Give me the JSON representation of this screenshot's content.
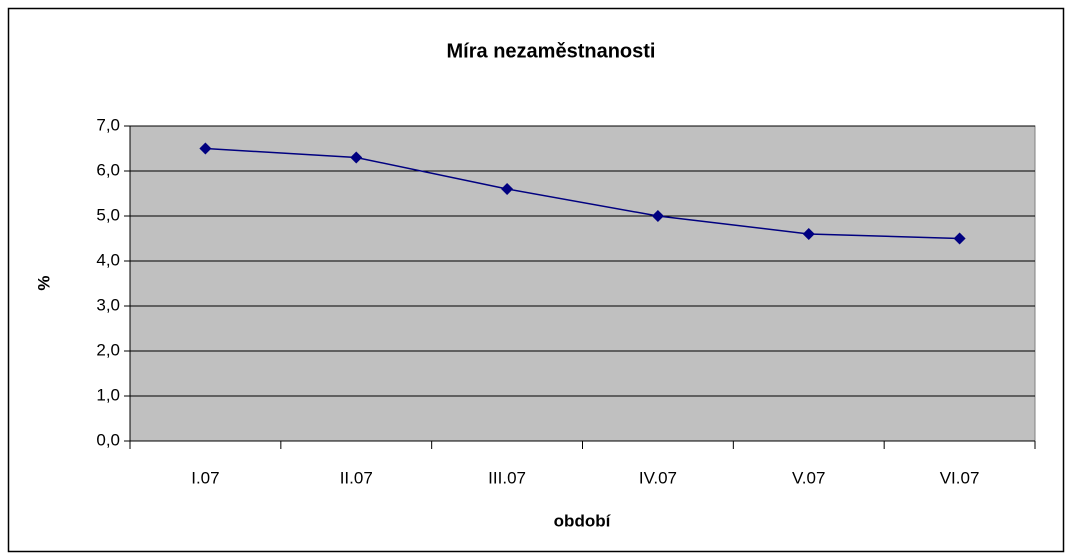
{
  "chart_data": {
    "type": "line",
    "title": "Míra nezaměstnanosti",
    "x_label": "období",
    "y_label": "%",
    "categories": [
      "I.07",
      "II.07",
      "III.07",
      "IV.07",
      "V.07",
      "VI.07"
    ],
    "series": [
      {
        "name": "Míra nezaměstnanosti",
        "color": "#000080",
        "values": [
          6.5,
          6.3,
          5.6,
          5.0,
          4.6,
          4.5
        ]
      }
    ],
    "ylim": [
      0,
      7
    ],
    "yticks": [
      {
        "value": 0,
        "label": "0,0"
      },
      {
        "value": 1,
        "label": "1,0"
      },
      {
        "value": 2,
        "label": "2,0"
      },
      {
        "value": 3,
        "label": "3,0"
      },
      {
        "value": 4,
        "label": "4,0"
      },
      {
        "value": 5,
        "label": "5,0"
      },
      {
        "value": 6,
        "label": "6,0"
      },
      {
        "value": 7,
        "label": "7,0"
      }
    ],
    "grid": true,
    "legend": false
  }
}
